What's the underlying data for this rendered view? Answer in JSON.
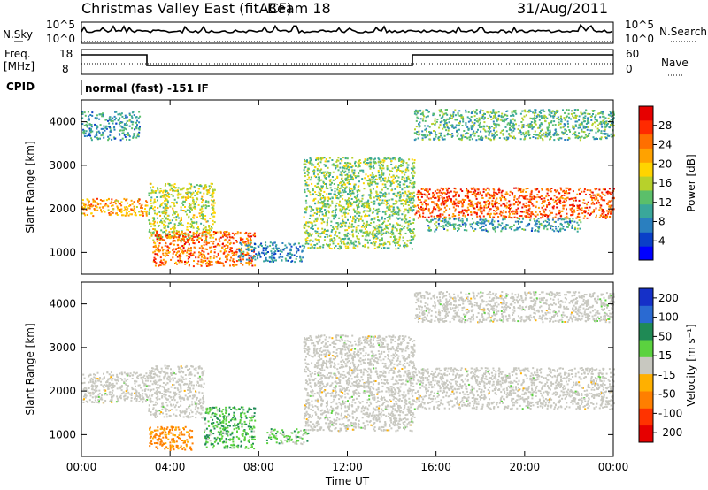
{
  "header": {
    "title": "Christmas Valley East (fitACF)",
    "beam": "Beam 18",
    "date": "31/Aug/2011"
  },
  "summary_panels": {
    "nsky_label": "N.Sky",
    "nsky_ticks": [
      "10^5",
      "10^0"
    ],
    "nsearch_label": "N.Search",
    "nsearch_ticks": [
      "10^5",
      "10^0"
    ],
    "freq_label_line1": "Freq.",
    "freq_label_line2": "[MHz]",
    "freq_ticks": [
      "18",
      "8"
    ],
    "nave_label": "Nave",
    "nave_ticks": [
      "60",
      "0"
    ],
    "cpid_label": "CPID",
    "cpid_text": "normal (fast) -151 IF"
  },
  "chart_data": [
    {
      "type": "heatmap",
      "name": "power",
      "xlabel": "",
      "ylabel": "Slant Range [km]",
      "x_ticks": [
        "00:00",
        "04:00",
        "08:00",
        "12:00",
        "16:00",
        "20:00",
        "00:00"
      ],
      "y_ticks": [
        1000,
        2000,
        3000,
        4000
      ],
      "xlim_hours": [
        0,
        24
      ],
      "ylim": [
        500,
        4500
      ],
      "colorbar": {
        "label": "Power [dB]",
        "ticks": [
          4,
          8,
          12,
          16,
          20,
          24,
          28
        ],
        "range": [
          0,
          32
        ],
        "colors": [
          "#0000ff",
          "#0a3fc8",
          "#2a7fbf",
          "#3aa79a",
          "#5bbf6a",
          "#b7d12b",
          "#ffd400",
          "#ffa200",
          "#ff6f00",
          "#ff2a00",
          "#e60000"
        ]
      },
      "echo_regions": [
        {
          "label": "low band early",
          "t": [
            0.0,
            3.0
          ],
          "range": [
            1850,
            2250
          ],
          "power": 22
        },
        {
          "label": "high band early",
          "t": [
            0.0,
            2.6
          ],
          "range": [
            3600,
            4250
          ],
          "power": 10
        },
        {
          "label": "rising arc",
          "t": [
            3.0,
            6.0
          ],
          "range": [
            1300,
            2600
          ],
          "power": 16
        },
        {
          "label": "E-region patch",
          "t": [
            3.2,
            7.8
          ],
          "range": [
            700,
            1500
          ],
          "power": 25
        },
        {
          "label": "secondary patch",
          "t": [
            7.0,
            10.0
          ],
          "range": [
            800,
            1250
          ],
          "power": 8
        },
        {
          "label": "descending arc",
          "t": [
            10.0,
            15.0
          ],
          "range": [
            1100,
            3200
          ],
          "power": 14
        },
        {
          "label": "late band",
          "t": [
            15.0,
            24.0
          ],
          "range": [
            1800,
            2500
          ],
          "power": 26
        },
        {
          "label": "lower late band",
          "t": [
            15.5,
            22.5
          ],
          "range": [
            1500,
            1800
          ],
          "power": 10
        },
        {
          "label": "late high band",
          "t": [
            15.0,
            24.0
          ],
          "range": [
            3600,
            4300
          ],
          "power": 12
        }
      ]
    },
    {
      "type": "heatmap",
      "name": "velocity",
      "xlabel": "Time UT",
      "ylabel": "Slant Range [km]",
      "x_ticks": [
        "00:00",
        "04:00",
        "08:00",
        "12:00",
        "16:00",
        "20:00",
        "00:00"
      ],
      "y_ticks": [
        1000,
        2000,
        3000,
        4000
      ],
      "xlim_hours": [
        0,
        24
      ],
      "ylim": [
        500,
        4500
      ],
      "colorbar": {
        "label": "Velocity [m s⁻¹]",
        "ticks": [
          200,
          100,
          50,
          15,
          -15,
          -50,
          -100,
          -200
        ],
        "colors": [
          "#1530c8",
          "#2a6ad2",
          "#1f8a55",
          "#5bd23f",
          "#c8c8c0",
          "#ffb000",
          "#ff7f00",
          "#ff3300",
          "#e60000"
        ]
      },
      "echo_regions": [
        {
          "label": "ground scatter early",
          "t": [
            0.0,
            3.0
          ],
          "range": [
            1750,
            2450
          ],
          "velocity": 0
        },
        {
          "label": "rising ground scatter",
          "t": [
            3.0,
            5.5
          ],
          "range": [
            1400,
            2600
          ],
          "velocity": 0
        },
        {
          "label": "orange patch",
          "t": [
            3.0,
            5.0
          ],
          "range": [
            650,
            1200
          ],
          "velocity": -60
        },
        {
          "label": "green patch",
          "t": [
            5.5,
            7.8
          ],
          "range": [
            700,
            1650
          ],
          "velocity": 40
        },
        {
          "label": "green secondary",
          "t": [
            8.3,
            10.2
          ],
          "range": [
            800,
            1150
          ],
          "velocity": 30
        },
        {
          "label": "descending ground scatter",
          "t": [
            10.0,
            15.0
          ],
          "range": [
            1100,
            3300
          ],
          "velocity": 0
        },
        {
          "label": "late ground scatter",
          "t": [
            15.0,
            24.0
          ],
          "range": [
            1600,
            2550
          ],
          "velocity": 0
        },
        {
          "label": "late high scatter",
          "t": [
            15.0,
            24.0
          ],
          "range": [
            3600,
            4300
          ],
          "velocity": 5
        }
      ]
    }
  ]
}
